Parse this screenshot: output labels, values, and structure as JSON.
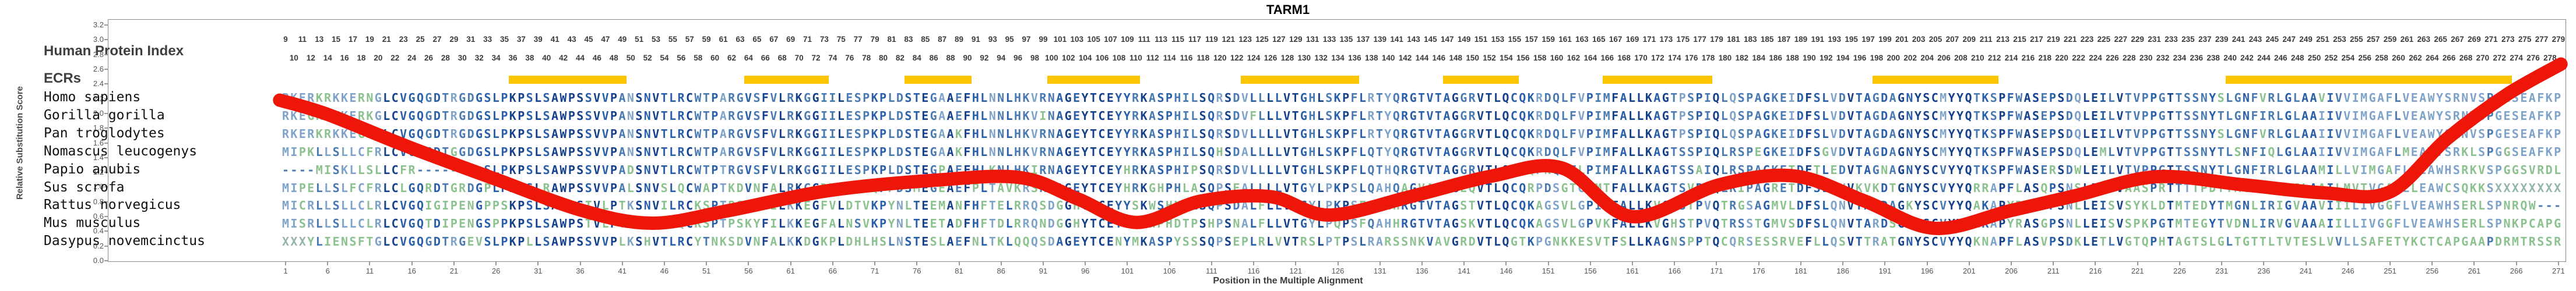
{
  "title": "TARM1",
  "colors": {
    "ecr_bar": "#fcc502",
    "score_line": "#ee1509",
    "residue_conserved": "#16418c",
    "residue_high": "#2a5fa9",
    "residue_mid": "#4a7ab2",
    "residue_low": "#7fa3c9",
    "residue_divergent": "#8cc28f",
    "residue_gap": "#4d7bb0",
    "residue_unknown": "#93b5ae",
    "axis": "#8a8a8a"
  },
  "y_axis": {
    "label": "Relative Substitution Score",
    "min": 0.0,
    "max": 3.2,
    "step": 0.2
  },
  "x_axis": {
    "label": "Position in the Multiple Alignment",
    "tick_start": 1,
    "tick_step": 5,
    "tick_end": 271
  },
  "protein_index": {
    "label": "Human Protein Index",
    "start": 9,
    "end": 279
  },
  "ecrs": {
    "label": "ECRs",
    "ranges": [
      [
        28,
        41
      ],
      [
        56,
        65
      ],
      [
        75,
        82
      ],
      [
        92,
        102
      ],
      [
        115,
        128
      ],
      [
        139,
        147
      ],
      [
        158,
        170
      ],
      [
        190,
        204
      ],
      [
        232,
        265
      ]
    ]
  },
  "alignment": {
    "length": 271,
    "species": [
      {
        "name": "Homo sapiens",
        "sequence": "RKERKRKKERNGLCVGQGDTRGDGSLPKPSLSAWPSSVVPANSNVTLRCWTPARGVSFVLRKGGIILESPKPLDSTEGAAEFHLNNLHKVRNAGEYTCEYYRKASPHILSQRSDVLLLLVTGHLSKPFLRTYQRGTVTAGGRVTLQCQKRDQLFVPIMFALLKAGTPSPIQLQSPAGKEIDFSLVDVTAGDAGNYSCMYYQTKSPFWASEPSDQLEILVTVPPGTTSSNYSLGNFVRLGLAAVIVVIMGAFLVEAWYSRNVSPGESEAFKPE"
      },
      {
        "name": "Gorilla gorilla",
        "sequence": "RKEGRKKKERKGLCVGQGDTRGDGSLPKPSLSAWPSSVVPANSNVTLRCWTPARGVSFVLRKGGIILESPKPLDSTEGAAEFHLNNLHKVINAGEYTCEYYRKASPHILSQRSDVFLLLVTGHLSKPFLRTYQRGTVTAGGRVTLQCQKRDQLFVPIMFALLKAGTPSPIQLQSPAGKEIDFSLVDVTAGDAGNYSCMYYQTKSPFWASEPSDQLEILVTVPPGTTSSNYTLGNFIRLGLAAIIVVIMGAFLVEAWYSRNVSPGESEAFKPE"
      },
      {
        "name": "Pan troglodytes",
        "sequence": "RKERKRKKEGNGLCVGQGDTRGDGSLPKPSLSAWPSSVVPANSNVTLRCWTPARGVSFVLRKGGIILESPKPLDSTEGAAKFHLNNLHKVRNAGEYTCEYYRKASPHILSQRSDVLLLLVTGHLSKPFLRTYQRGTVTAGGRVTLQCQKRDQLFVPIMFALLKAGTPSPIQLQSPAGKEIDFSLVDVTAGDAGNYSCMYYQTKSPFWASEPSDQLEILVTVPPGTTSSNYSLGNFVRLGLAAIIVVIMGAFLVEAWYSRNVSPGESEAFKPE"
      },
      {
        "name": "Nomascus leucogenys",
        "sequence": "MIPKLLSLLCFRLCVGQGDTGGDGSLPKPSLSAWPSSVVPANSNVTLRCWTPARGVSFVLRKGGIILESPKPLDSTEGAAKFHLNNLHKVRNAGEYTCEYYRKASPHILSQHSDALLLLVTGHLSKPFLQTYQRGTVTAGGRVTLQCQKRDQLFVPIMFALLKAGTSSPIQLRSPEGKEIDFSGVDVTAGDAGNYSCMYYQTKSPFWASEPSDQLEMLVTVPPGTTSSNYTLSNFIQLGLAAIIVVIMGAFLMEAWYSRKLSPGGSEAFKPE"
      },
      {
        "name": "Papio anubis",
        "sequence": "----MISKLLSLLCFR--------SLPKPSLSAWPSSVVPADSNVTLRCWTPTRGVSFVLRKGGIILESPKPLDSTEGPAEFHLKNLHKIRNAGEYTCEYHRKASPHIPSQRSDVLLLLVTGHLSKPFLQTHQRGTVTAGGRVTLQCRQPNQLFLPIMFALLKAGTSSAIQLRSPAGKETDFTLEDVTAGNAGNYSCVYYQTKSPFWASERSDWLEILVTVPPGTTSSNYTLGNFIRLGLAAMILLVIMGAFLVEAWHSRKVSPGGSVRDLQT"
      },
      {
        "name": "Sus scrofa",
        "sequence": "MIPELLSLFCFRLCLGQRDTGRDGPLPKPSLRAWPSSVVPALSNVSLQCWAPTKDVNFALRKGGDVLGLLQPPDSMEGEAEFPLTAVKRSRDAGEYTCEYHRKGHPHLASQPSEALLLLVTGYLPKPSLQAHQAGVATEGEQVTLQCQRPDSGTGIMTFALLKAGTSVPVQLRIPAGRETDFSLQNVKVKDTGNYSCVYYQRRAPFLASQPSNSLEIWVAASPRTTTTPDYTMGNLIRLGLAAILMVTVGALLLEAWCSQKKSXXXXXXXXXX"
      },
      {
        "name": "Rattus norvegicus",
        "sequence": "MICRLLSLLCLRLCVGQIGIPENGPPSKPSLSAWPSTVLPTKSNVILRCKSPTPSKHFILKKEGFVLDTVKPYNLTEEMANFHFTELRRQSDGGHYTCEYYSKWSHNTLSQPSDALFLLVTGYLPKPSFQAHHRGTVTAGSTVTLQCQKAGSVLGPIWFALLKVGHSTPVQTRGSAGMVLDFSLQNVTARDAGKYSCVYYQAKAPYRASDPSNLLEISVSYKLDTMTEDYTMGNLIRIGVAAVIIILIVGGFLVEAWHSERLSPNRQW-----"
      },
      {
        "name": "Mus musculus",
        "sequence": "MISRLLSLLCLRLCVGQTDIPENGSPPKPSLSAWPSTVLPTKSHVTMQCKSPTPSKYFILKKEGFALNSVKPYNLTEETADFHFTDLRRQNDGGHYTCEYYSKWPHDTPSHPSNALFLLVTGYLPQPSFQAHHRGTVTAGSKVTLQCQKAGSVLGPVKFALLKVGHSTPVQTRSSTGMVSDFSLQNVTARDSGEYSCVYYQAKAPYRASGPSNLLEISVSPKPGTMTEGYTVDNLIRVGVAAAIILLIVGGFLVEAWHSERLSPNKPCAPGEK"
      },
      {
        "name": "Dasypus novemcinctus",
        "sequence": "XXXYLIENSFTGLCVGQGDTRGEVSLPKPLLSAWPSSVVPLKSHVTLRCYTNKSDVNFALKKDGKPLDHLHSLNSTESLAEFNLTKLQQQSDAGEYTCENYMKASPYSSSQPSEPLRLVVTRSLPTPSLRARSSNKVAVGRDVTLQGTKPGNKKESVTFSLLKAGNSPPTQCQRSESSRVEFLLQSVTTRATGNYSCVYYQKNAPFLASVPSDKLETLVGTQPHTAGTSLGLTGTTLTVTESLVVLLSAFETYKCTCAPGAAPDRMTRSSRS"
      }
    ]
  },
  "chart_data": {
    "type": "line",
    "title": "TARM1",
    "xlabel": "Position in the Multiple Alignment",
    "ylabel": "Relative Substitution Score",
    "xlim": [
      1,
      271
    ],
    "ylim": [
      0.0,
      3.2
    ],
    "grid": false,
    "series_name": "relative substitution score",
    "points": [
      {
        "p": 0.3,
        "s": 2.18
      },
      {
        "p": 5.9,
        "s": 1.99
      },
      {
        "p": 15.5,
        "s": 1.55
      },
      {
        "p": 25.9,
        "s": 1.11
      },
      {
        "p": 36.3,
        "s": 0.68
      },
      {
        "p": 44.6,
        "s": 0.51
      },
      {
        "p": 53.6,
        "s": 0.68
      },
      {
        "p": 65.4,
        "s": 0.95
      },
      {
        "p": 77.8,
        "s": 1.09
      },
      {
        "p": 88.2,
        "s": 1.13
      },
      {
        "p": 95.1,
        "s": 0.84
      },
      {
        "p": 102.1,
        "s": 0.52
      },
      {
        "p": 109.7,
        "s": 0.81
      },
      {
        "p": 118.0,
        "s": 0.87
      },
      {
        "p": 124.9,
        "s": 0.62
      },
      {
        "p": 134.6,
        "s": 0.87
      },
      {
        "p": 144.3,
        "s": 1.15
      },
      {
        "p": 152.6,
        "s": 1.26
      },
      {
        "p": 160.9,
        "s": 0.6
      },
      {
        "p": 171.3,
        "s": 1.03
      },
      {
        "p": 180.3,
        "s": 1.15
      },
      {
        "p": 188.6,
        "s": 0.81
      },
      {
        "p": 196.9,
        "s": 0.44
      },
      {
        "p": 205.9,
        "s": 0.68
      },
      {
        "p": 213.5,
        "s": 0.88
      },
      {
        "p": 223.2,
        "s": 1.14
      },
      {
        "p": 233.6,
        "s": 1.03
      },
      {
        "p": 243.3,
        "s": 0.92
      },
      {
        "p": 250.9,
        "s": 0.93
      },
      {
        "p": 257.8,
        "s": 1.66
      },
      {
        "p": 264.8,
        "s": 2.25
      },
      {
        "p": 271.3,
        "s": 2.67
      }
    ]
  }
}
